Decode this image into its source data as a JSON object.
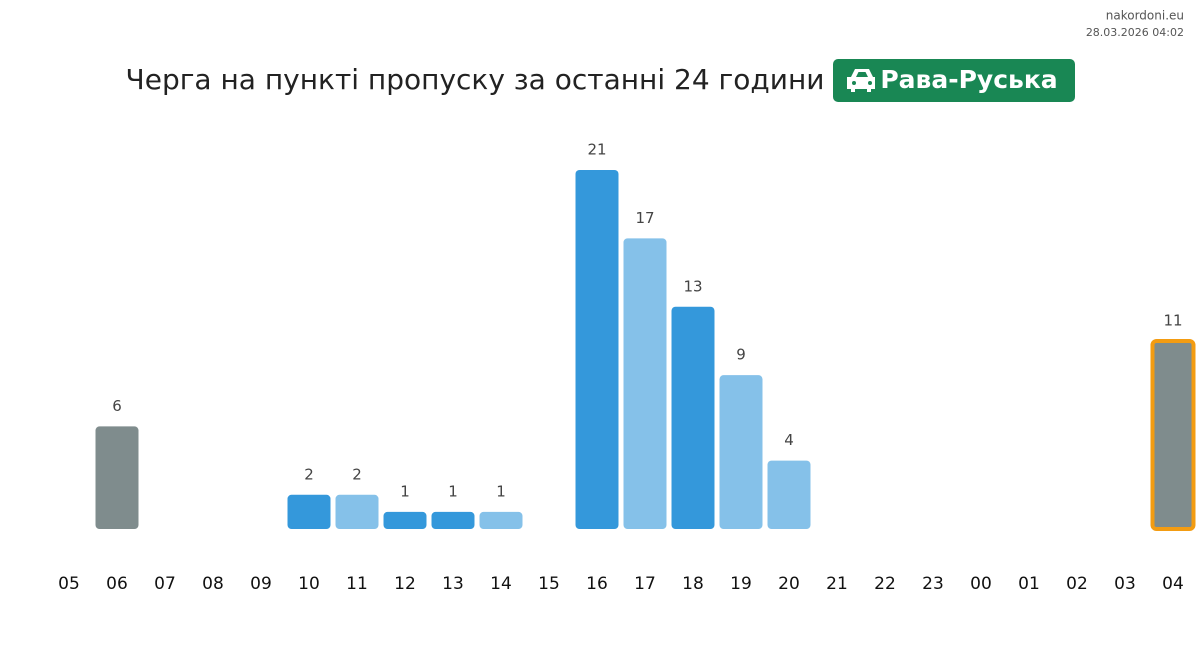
{
  "header": {
    "site": "nakordoni.eu",
    "timestamp": "28.03.2026 04:02"
  },
  "chart_data": {
    "type": "bar",
    "title": "Черга на пункті пропуску за останні 24 години",
    "badge": {
      "label": "Рава-Руська",
      "color": "#198754"
    },
    "categories": [
      "05",
      "06",
      "07",
      "08",
      "09",
      "10",
      "11",
      "12",
      "13",
      "14",
      "15",
      "16",
      "17",
      "18",
      "19",
      "20",
      "21",
      "22",
      "23",
      "00",
      "01",
      "02",
      "03",
      "04"
    ],
    "values": [
      null,
      6,
      null,
      null,
      null,
      2,
      2,
      1,
      1,
      1,
      null,
      21,
      17,
      13,
      9,
      4,
      null,
      null,
      null,
      null,
      null,
      null,
      null,
      11
    ],
    "colors": [
      null,
      "#7f8c8d",
      null,
      null,
      null,
      "#3498db",
      "#85c1e9",
      "#3498db",
      "#3498db",
      "#85c1e9",
      null,
      "#3498db",
      "#85c1e9",
      "#3498db",
      "#85c1e9",
      "#85c1e9",
      null,
      null,
      null,
      null,
      null,
      null,
      null,
      "#7f8c8d"
    ],
    "border_colors": [
      null,
      null,
      null,
      null,
      null,
      null,
      null,
      null,
      null,
      null,
      null,
      null,
      null,
      null,
      null,
      null,
      null,
      null,
      null,
      null,
      null,
      null,
      null,
      "#f39c12"
    ]
  }
}
